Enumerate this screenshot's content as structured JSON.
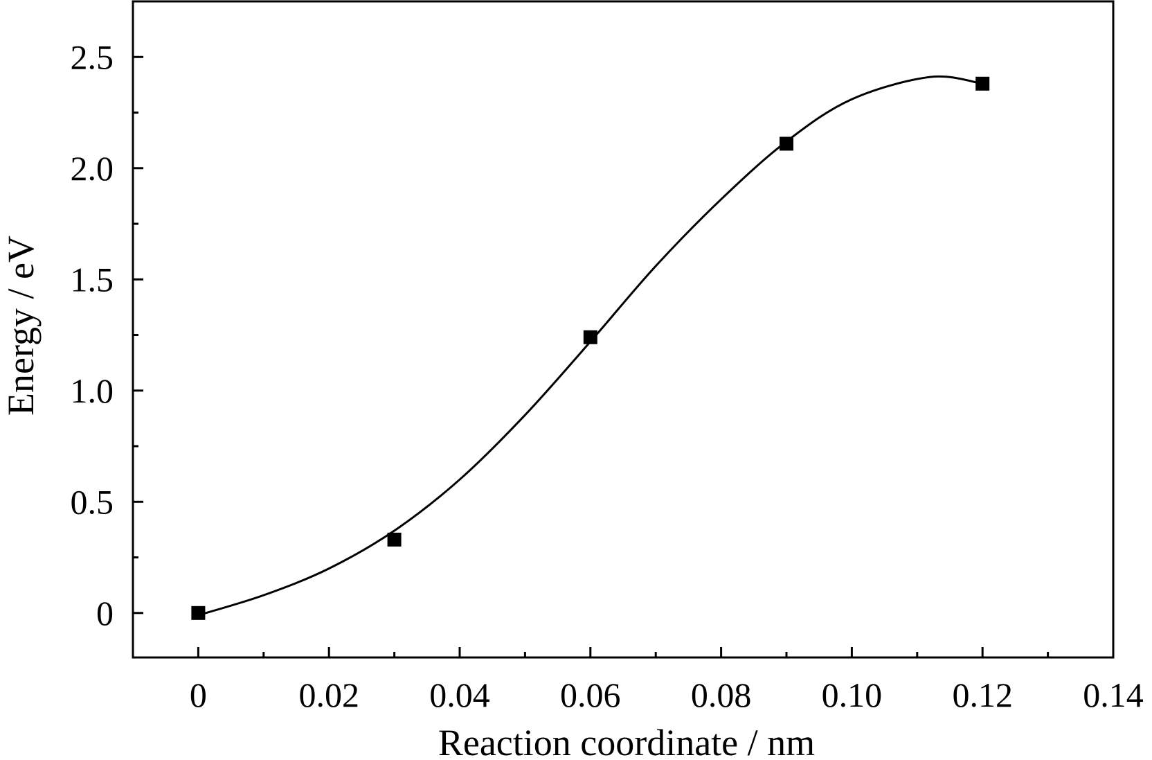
{
  "chart_data": {
    "type": "scatter",
    "title": "",
    "xlabel": "Reaction coordinate / nm",
    "ylabel": "Energy / eV",
    "xlim": [
      -0.01,
      0.14
    ],
    "ylim": [
      -0.2,
      2.75
    ],
    "grid": false,
    "x_ticks": [
      {
        "value": 0,
        "label": "0"
      },
      {
        "value": 0.02,
        "label": "0.02"
      },
      {
        "value": 0.04,
        "label": "0.04"
      },
      {
        "value": 0.06,
        "label": "0.06"
      },
      {
        "value": 0.08,
        "label": "0.08"
      },
      {
        "value": 0.1,
        "label": "0.10"
      },
      {
        "value": 0.12,
        "label": "0.12"
      },
      {
        "value": 0.14,
        "label": "0.14"
      }
    ],
    "y_ticks": [
      {
        "value": 0,
        "label": "0"
      },
      {
        "value": 0.5,
        "label": "0.5"
      },
      {
        "value": 1.0,
        "label": "1.0"
      },
      {
        "value": 1.5,
        "label": "1.5"
      },
      {
        "value": 2.0,
        "label": "2.0"
      },
      {
        "value": 2.5,
        "label": "2.5"
      }
    ],
    "x_minor_ticks": [
      0.01,
      0.03,
      0.05,
      0.07,
      0.09,
      0.11,
      0.13
    ],
    "y_minor_ticks": [
      0.25,
      0.75,
      1.25,
      1.75,
      2.25
    ],
    "series": [
      {
        "marker": "square",
        "color": "#000000",
        "points": [
          {
            "x": 0,
            "y": 0.0
          },
          {
            "x": 0.03,
            "y": 0.33
          },
          {
            "x": 0.06,
            "y": 1.24
          },
          {
            "x": 0.09,
            "y": 2.11
          },
          {
            "x": 0.12,
            "y": 2.38
          }
        ]
      }
    ],
    "fit_curve": {
      "color": "#000000",
      "points": [
        {
          "x": 0.0,
          "y": -0.01
        },
        {
          "x": 0.01,
          "y": 0.08
        },
        {
          "x": 0.02,
          "y": 0.2
        },
        {
          "x": 0.03,
          "y": 0.37
        },
        {
          "x": 0.04,
          "y": 0.6
        },
        {
          "x": 0.05,
          "y": 0.89
        },
        {
          "x": 0.06,
          "y": 1.22
        },
        {
          "x": 0.07,
          "y": 1.56
        },
        {
          "x": 0.08,
          "y": 1.86
        },
        {
          "x": 0.09,
          "y": 2.12
        },
        {
          "x": 0.1,
          "y": 2.31
        },
        {
          "x": 0.112,
          "y": 2.41
        },
        {
          "x": 0.12,
          "y": 2.38
        }
      ]
    }
  }
}
